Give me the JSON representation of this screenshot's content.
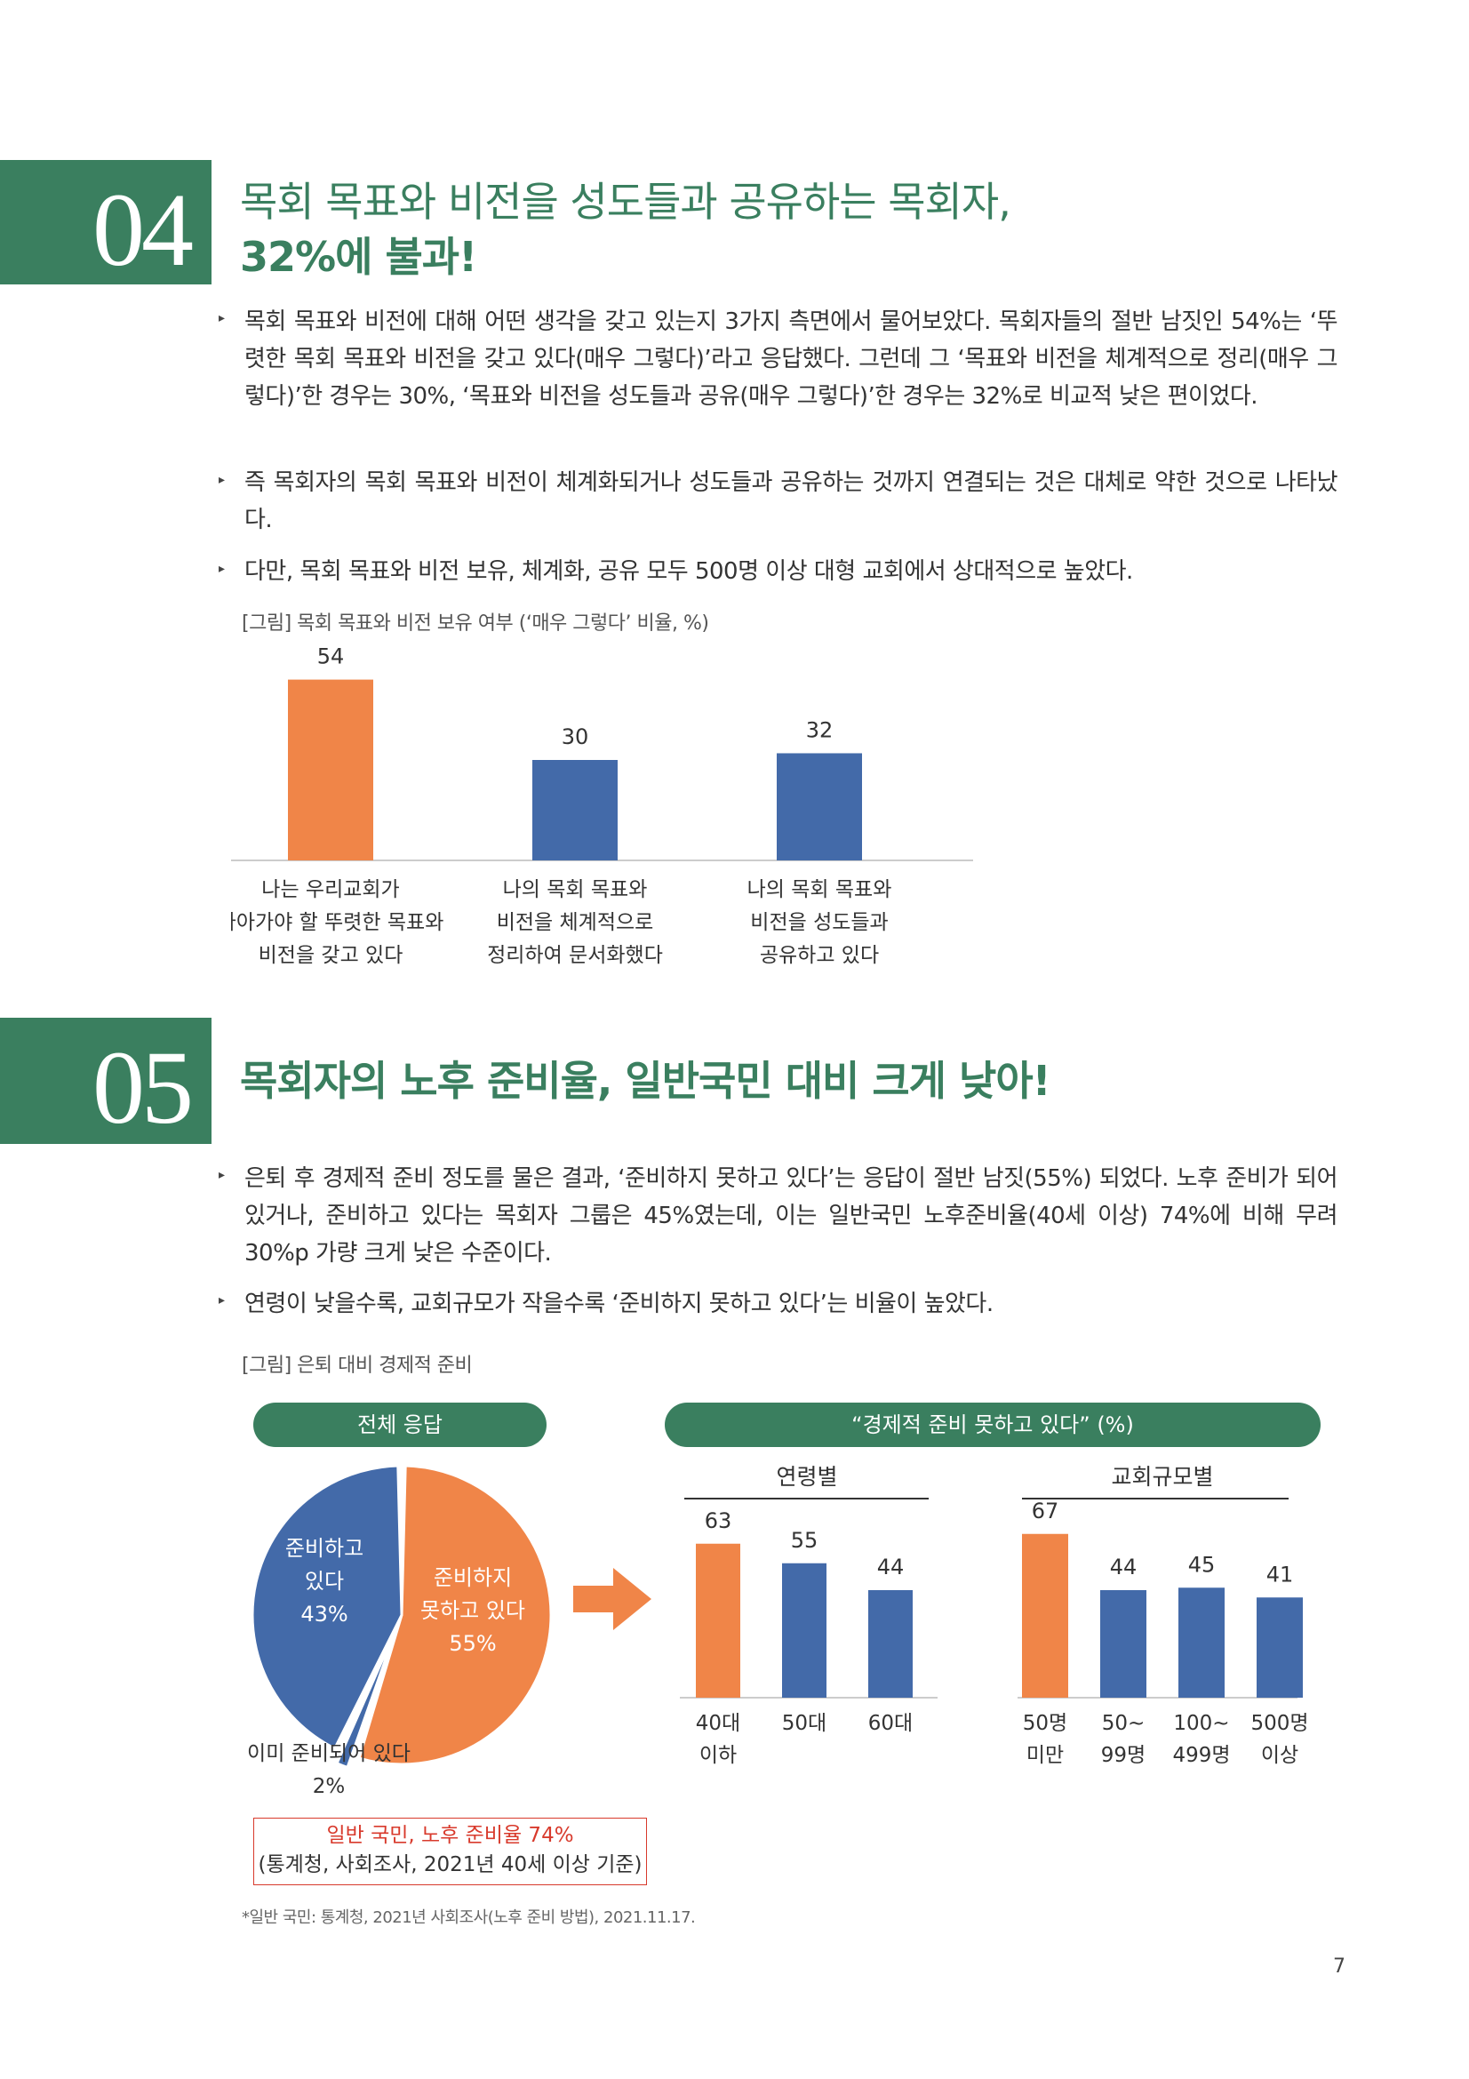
{
  "colors": {
    "green": "#3a7f5f",
    "orange": "#f08548",
    "blue": "#436aa9",
    "red": "#d83a2c"
  },
  "section04": {
    "number": "04",
    "title_line1": "목회 목표와 비전을 성도들과 공유하는 목회자,",
    "title_line2": "32%에 불과!",
    "bullets": [
      "목회 목표와 비전에 대해 어떤 생각을 갖고 있는지 3가지 측면에서 물어보았다. 목회자들의 절반 남짓인 54%는 ‘뚜렷한 목회 목표와 비전을 갖고 있다(매우 그렇다)’라고 응답했다. 그런데 그 ‘목표와 비전을 체계적으로 정리(매우 그렇다)’한 경우는 30%, ‘목표와 비전을 성도들과 공유(매우 그렇다)’한 경우는 32%로 비교적 낮은 편이었다.",
      "즉 목회자의 목회 목표와 비전이 체계화되거나 성도들과 공유하는 것까지 연결되는 것은 대체로 약한 것으로 나타났다.",
      "다만, 목회 목표와 비전 보유, 체계화, 공유 모두 500명 이상 대형 교회에서 상대적으로 높았다."
    ],
    "figure_caption": "[그림] 목회 목표와 비전 보유 여부 (‘매우 그렇다’ 비율, %)"
  },
  "section05": {
    "number": "05",
    "title": "목회자의 노후 준비율, 일반국민 대비 크게 낮아!",
    "bullets": [
      "은퇴 후 경제적 준비 정도를 물은 결과, ‘준비하지 못하고 있다’는 응답이 절반 남짓(55%) 되었다. 노후 준비가 되어 있거나, 준비하고 있다는 목회자 그룹은 45%였는데, 이는 일반국민 노후준비율(40세 이상) 74%에 비해 무려 30%p 가량 크게 낮은 수준이다.",
      "연령이 낮을수록, 교회규모가 작을수록 ‘준비하지 못하고 있다’는 비율이 높았다."
    ],
    "figure_caption": "[그림] 은퇴 대비 경제적 준비",
    "pill_total": "전체 응답",
    "pill_right": "“경제적 준비 못하고 있다” (%)",
    "pie_labels": {
      "preparing": [
        "준비하고",
        "있다",
        "43%"
      ],
      "not_prepared": [
        "준비하지",
        "못하고 있다",
        "55%"
      ],
      "already": [
        "이미 준비되어 있다",
        "2%"
      ]
    },
    "note_box": [
      "일반 국민, 노후 준비율 74%",
      "(통계청, 사회조사, 2021년 40세 이상 기준)"
    ],
    "footnote": "*일반 국민: 통계청, 2021년 사회조사(노후 준비 방법), 2021.11.17."
  },
  "page_number": "7",
  "chart_data": [
    {
      "type": "bar",
      "title": "",
      "categories": [
        [
          "나는 우리교회가",
          "나아가야 할 뚜렷한 목표와",
          "비전을 갖고 있다"
        ],
        [
          "나의 목회 목표와",
          "비전을 체계적으로",
          "정리하여 문서화했다"
        ],
        [
          "나의 목회 목표와",
          "비전을 성도들과",
          "공유하고 있다"
        ]
      ],
      "values": [
        54,
        30,
        32
      ],
      "highlight_index": 0,
      "ylim": [
        0,
        60
      ]
    },
    {
      "type": "pie",
      "slices": [
        {
          "label": "준비하지 못하고 있다",
          "value": 55
        },
        {
          "label": "이미 준비되어 있다",
          "value": 2
        },
        {
          "label": "준비하고 있다",
          "value": 43
        }
      ]
    },
    {
      "type": "bar",
      "title": "연령별",
      "categories": [
        [
          "40대",
          "이하"
        ],
        [
          "50대"
        ],
        [
          "60대"
        ]
      ],
      "values": [
        63,
        55,
        44
      ],
      "highlight_index": 0,
      "ylim": [
        0,
        80
      ]
    },
    {
      "type": "bar",
      "title": "교회규모별",
      "categories": [
        [
          "50명",
          "미만"
        ],
        [
          "50~",
          "99명"
        ],
        [
          "100~",
          "499명"
        ],
        [
          "500명",
          "이상"
        ]
      ],
      "values": [
        67,
        44,
        45,
        41
      ],
      "highlight_index": 0,
      "ylim": [
        0,
        80
      ]
    }
  ]
}
